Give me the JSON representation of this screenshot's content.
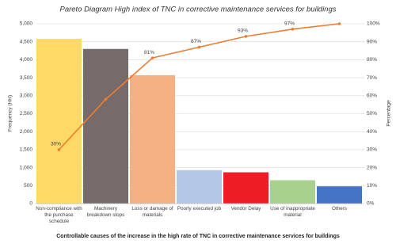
{
  "chart_data": {
    "type": "pareto",
    "title": "Pareto Diagram High index of TNC in corrective maintenance services for buildings",
    "x_label": "Controllable causes of the increase in the high rate of TNC in corrective maintenance services for buildings",
    "y_label": "Frequency (HH)",
    "y2_label": "Percentage",
    "categories": [
      "Non-compliance with the purchase schedule",
      "Machinery breakdown stops",
      "Loss or damage of materials",
      "Poorly executed job",
      "Vendor Delay",
      "Use of inappropriate material",
      "Others"
    ],
    "series": [
      {
        "type": "bar",
        "colors": [
          "#ffd966",
          "#766a6a",
          "#f4b183",
          "#b4c7e7",
          "#ee1c25",
          "#a9d18e",
          "#4472c4"
        ],
        "values": [
          4580,
          4300,
          3570,
          930,
          870,
          650,
          480
        ]
      },
      {
        "type": "line",
        "axis": "y2",
        "color": "#ed7d31",
        "values": [
          30,
          58,
          81,
          87,
          93,
          97,
          100
        ],
        "value_labels": [
          "30%",
          null,
          "81%",
          "87%",
          "93%",
          "97%",
          null
        ]
      }
    ],
    "ylim": [
      0,
      5000
    ],
    "yticks": [
      0,
      500,
      {
        "value": 1000,
        "label": "1,000"
      },
      {
        "value": 1500,
        "label": "1,500"
      },
      {
        "value": 2000,
        "label": "2,000"
      },
      {
        "value": 2500,
        "label": "2,500"
      },
      {
        "value": 3000,
        "label": "3,000"
      },
      {
        "value": 3500,
        "label": "3,500"
      },
      {
        "value": 4000,
        "label": "4,000"
      },
      {
        "value": 4500,
        "label": "4,500"
      },
      {
        "value": 5000,
        "label": "5,000"
      }
    ],
    "y2lim": [
      0,
      100
    ],
    "y2ticks": [
      {
        "value": 0,
        "label": "0%"
      },
      {
        "value": 10,
        "label": "10%"
      },
      {
        "value": 20,
        "label": "20%"
      },
      {
        "value": 30,
        "label": "30%"
      },
      {
        "value": 40,
        "label": "40%"
      },
      {
        "value": 50,
        "label": "50%"
      },
      {
        "value": 60,
        "label": "60%"
      },
      {
        "value": 70,
        "label": "70%"
      },
      {
        "value": 80,
        "label": "80%"
      },
      {
        "value": 90,
        "label": "90%"
      },
      {
        "value": 100,
        "label": "100%"
      }
    ],
    "grid": true
  }
}
